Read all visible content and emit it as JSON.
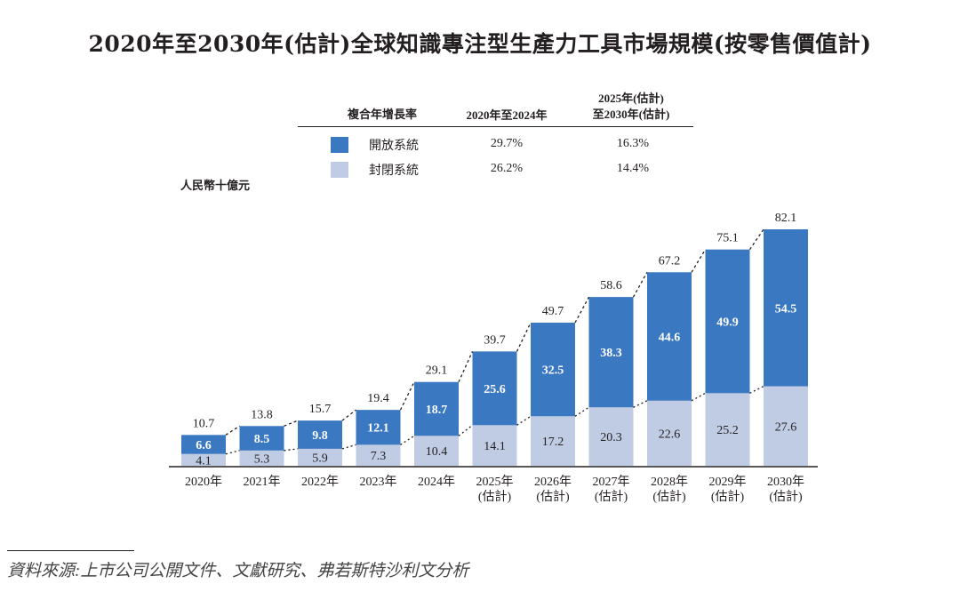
{
  "chart_data": {
    "type": "bar",
    "stacked": true,
    "title": "2020年至2030年(估計)全球知識專注型生產力工具市場規模(按零售價值計)",
    "ylabel": "人民幣十億元",
    "xlabel": "",
    "categories": [
      [
        "2020年"
      ],
      [
        "2021年"
      ],
      [
        "2022年"
      ],
      [
        "2023年"
      ],
      [
        "2024年"
      ],
      [
        "2025年",
        "(估計)"
      ],
      [
        "2026年",
        "(估計)"
      ],
      [
        "2027年",
        "(估計)"
      ],
      [
        "2028年",
        "(估計)"
      ],
      [
        "2029年",
        "(估計)"
      ],
      [
        "2030年",
        "(估計)"
      ]
    ],
    "series": [
      {
        "name": "封閉系統",
        "color": "#c0cce3",
        "values": [
          4.1,
          5.3,
          5.9,
          7.3,
          10.4,
          14.1,
          17.2,
          20.3,
          22.6,
          25.2,
          27.6
        ]
      },
      {
        "name": "開放系統",
        "color": "#3a78c2",
        "values": [
          6.6,
          8.5,
          9.8,
          12.1,
          18.7,
          25.6,
          32.5,
          38.3,
          44.6,
          49.9,
          54.5
        ]
      }
    ],
    "totals": [
      10.7,
      13.8,
      15.7,
      19.4,
      29.1,
      39.7,
      49.7,
      58.6,
      67.2,
      75.1,
      82.1
    ],
    "ylim": [
      0,
      90
    ],
    "grid": false,
    "legend_position": "top-center",
    "cagr_table": {
      "header": [
        "複合年增長率",
        "2020年至2024年",
        [
          "2025年(估計)",
          "至2030年(估計)"
        ]
      ],
      "rows": [
        {
          "name": "開放系統",
          "color": "#3a78c2",
          "values": [
            "29.7%",
            "16.3%"
          ]
        },
        {
          "name": "封閉系統",
          "color": "#c0cce3",
          "values": [
            "26.2%",
            "14.4%"
          ]
        }
      ]
    }
  },
  "title": "2020年至2030年(估計)全球知識專注型生產力工具市場規模(按零售價值計)",
  "legend": {
    "header_label": "複合年增長率",
    "col1": "2020年至2024年",
    "col2_line1": "2025年(估計)",
    "col2_line2": "至2030年(估計)",
    "rows": [
      {
        "name": "開放系統",
        "v1": "29.7%",
        "v2": "16.3%"
      },
      {
        "name": "封閉系統",
        "v1": "26.2%",
        "v2": "14.4%"
      }
    ]
  },
  "unit_label": "人民幣十億元",
  "source": "資料來源:上市公司公開文件、文獻研究、弗若斯特沙利文分析"
}
